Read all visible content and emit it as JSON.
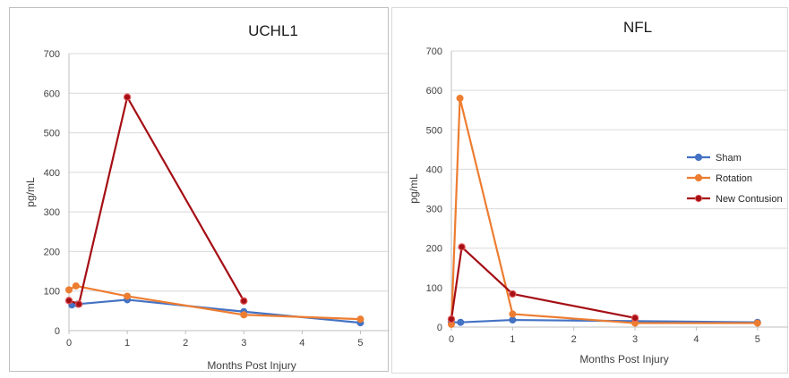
{
  "colors": {
    "Sham": "#4472C4",
    "Rotation": "#ED7D31",
    "New Contusion": "#A50E15"
  },
  "chart_data": [
    {
      "type": "line",
      "title": "UCHL1",
      "xlabel": "Months Post Injury",
      "ylabel": "pg/mL",
      "xlim": [
        0,
        5.5
      ],
      "ylim": [
        0,
        700
      ],
      "xticks": [
        0,
        1,
        2,
        3,
        4,
        5
      ],
      "yticks": [
        0,
        100,
        200,
        300,
        400,
        500,
        600,
        700
      ],
      "grid": true,
      "legend": "none",
      "series": [
        {
          "name": "Sham",
          "points": [
            [
              0.05,
              65
            ],
            [
              0.15,
              67
            ],
            [
              1,
              78
            ],
            [
              3,
              48
            ],
            [
              5,
              20
            ]
          ]
        },
        {
          "name": "Rotation",
          "points": [
            [
              0,
              103
            ],
            [
              0.12,
              113
            ],
            [
              1,
              87
            ],
            [
              3,
              40
            ],
            [
              5,
              29
            ]
          ]
        },
        {
          "name": "New Contusion",
          "points": [
            [
              0,
              76
            ],
            [
              0.17,
              67
            ],
            [
              1,
              590
            ],
            [
              3,
              75
            ]
          ]
        }
      ]
    },
    {
      "type": "line",
      "title": "NFL",
      "xlabel": "Months Post Injury",
      "ylabel": "pg/mL",
      "xlim": [
        0,
        5.5
      ],
      "ylim": [
        0,
        700
      ],
      "xticks": [
        0,
        1,
        2,
        3,
        4,
        5
      ],
      "yticks": [
        0,
        100,
        200,
        300,
        400,
        500,
        600,
        700
      ],
      "grid": true,
      "legend": "right",
      "series": [
        {
          "name": "Sham",
          "points": [
            [
              0,
              12
            ],
            [
              0.15,
              12
            ],
            [
              1,
              18
            ],
            [
              3,
              15
            ],
            [
              5,
              12
            ]
          ]
        },
        {
          "name": "Rotation",
          "points": [
            [
              0,
              7
            ],
            [
              0.14,
              580
            ],
            [
              1,
              33
            ],
            [
              3,
              10
            ],
            [
              5,
              10
            ]
          ]
        },
        {
          "name": "New Contusion",
          "points": [
            [
              0,
              20
            ],
            [
              0.17,
              203
            ],
            [
              1,
              84
            ],
            [
              3,
              23
            ]
          ]
        }
      ]
    }
  ]
}
